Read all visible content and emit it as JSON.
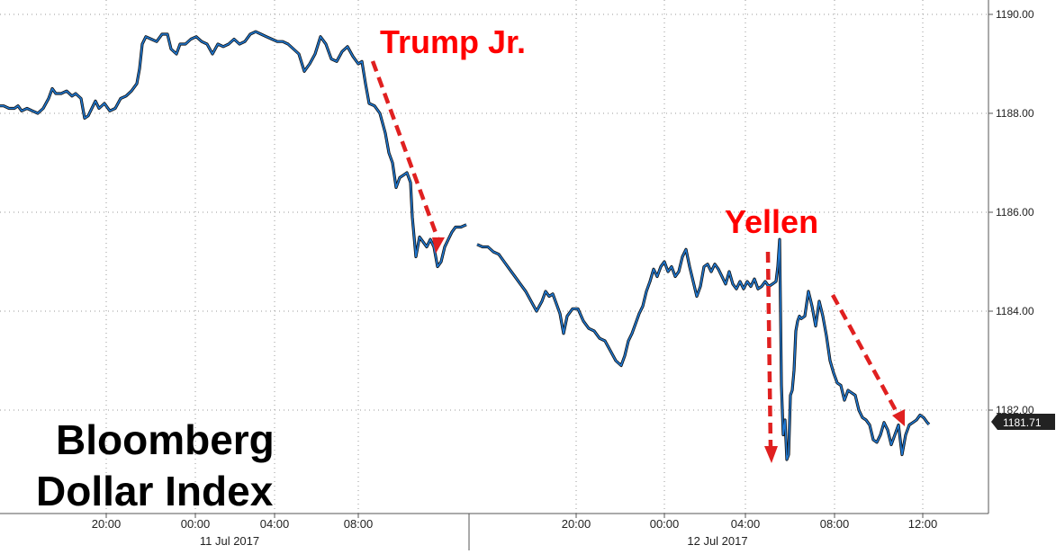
{
  "chart_data": {
    "type": "line",
    "title_lines": [
      "Bloomberg",
      "Dollar Index"
    ],
    "y_ticks": [
      "1182.00",
      "1184.00",
      "1186.00",
      "1188.00",
      "1190.00"
    ],
    "y_tick_values": [
      1182,
      1184,
      1186,
      1188,
      1190
    ],
    "ylim": [
      1180.0,
      1190.3
    ],
    "last_value_label": "1181.71",
    "last_value": 1181.71,
    "x_tick_labels": [
      "20:00",
      "00:00",
      "04:00",
      "08:00",
      "20:00",
      "00:00",
      "04:00",
      "08:00",
      "12:00"
    ],
    "date_labels": [
      "11 Jul 2017",
      "12 Jul 2017"
    ],
    "grid": true,
    "annotations": [
      {
        "text": "Trump Jr.",
        "color": "#ff0000"
      },
      {
        "text": "Yellen",
        "color": "#ff0000"
      }
    ],
    "series": [
      {
        "color": "#1f77d0",
        "segments": [
          [
            [
              0,
              1188.15
            ],
            [
              4,
              1188.15
            ],
            [
              10,
              1188.1
            ],
            [
              16,
              1188.1
            ],
            [
              20,
              1188.15
            ],
            [
              24,
              1188.05
            ],
            [
              30,
              1188.1
            ],
            [
              36,
              1188.05
            ],
            [
              42,
              1188.0
            ],
            [
              48,
              1188.1
            ],
            [
              54,
              1188.3
            ],
            [
              58,
              1188.5
            ],
            [
              62,
              1188.4
            ],
            [
              68,
              1188.4
            ],
            [
              74,
              1188.45
            ],
            [
              80,
              1188.35
            ],
            [
              84,
              1188.4
            ],
            [
              90,
              1188.3
            ],
            [
              94,
              1187.9
            ],
            [
              98,
              1187.95
            ],
            [
              102,
              1188.1
            ],
            [
              106,
              1188.25
            ],
            [
              110,
              1188.1
            ],
            [
              116,
              1188.2
            ],
            [
              122,
              1188.05
            ],
            [
              128,
              1188.1
            ],
            [
              134,
              1188.3
            ],
            [
              140,
              1188.35
            ],
            [
              146,
              1188.45
            ],
            [
              152,
              1188.6
            ],
            [
              155,
              1188.9
            ],
            [
              158,
              1189.4
            ],
            [
              162,
              1189.55
            ],
            [
              168,
              1189.5
            ],
            [
              174,
              1189.45
            ],
            [
              180,
              1189.6
            ],
            [
              186,
              1189.6
            ],
            [
              190,
              1189.3
            ],
            [
              196,
              1189.2
            ],
            [
              200,
              1189.4
            ],
            [
              206,
              1189.4
            ],
            [
              212,
              1189.5
            ],
            [
              218,
              1189.55
            ],
            [
              224,
              1189.45
            ],
            [
              230,
              1189.4
            ],
            [
              236,
              1189.2
            ],
            [
              242,
              1189.4
            ],
            [
              248,
              1189.35
            ],
            [
              254,
              1189.4
            ],
            [
              260,
              1189.5
            ],
            [
              266,
              1189.4
            ],
            [
              272,
              1189.45
            ],
            [
              278,
              1189.6
            ],
            [
              284,
              1189.65
            ],
            [
              290,
              1189.6
            ],
            [
              296,
              1189.55
            ],
            [
              302,
              1189.5
            ],
            [
              308,
              1189.45
            ],
            [
              314,
              1189.45
            ],
            [
              320,
              1189.4
            ],
            [
              326,
              1189.3
            ],
            [
              332,
              1189.2
            ],
            [
              338,
              1188.85
            ],
            [
              344,
              1189.0
            ],
            [
              350,
              1189.2
            ],
            [
              356,
              1189.55
            ],
            [
              362,
              1189.4
            ],
            [
              368,
              1189.1
            ],
            [
              374,
              1189.05
            ],
            [
              380,
              1189.25
            ],
            [
              386,
              1189.35
            ],
            [
              392,
              1189.15
            ],
            [
              398,
              1189.0
            ],
            [
              402,
              1189.05
            ],
            [
              406,
              1188.6
            ],
            [
              410,
              1188.2
            ],
            [
              416,
              1188.15
            ],
            [
              422,
              1188.0
            ],
            [
              428,
              1187.6
            ],
            [
              432,
              1187.2
            ],
            [
              436,
              1187.0
            ],
            [
              440,
              1186.5
            ],
            [
              444,
              1186.7
            ],
            [
              448,
              1186.75
            ],
            [
              452,
              1186.8
            ],
            [
              456,
              1186.6
            ],
            [
              458,
              1185.9
            ],
            [
              462,
              1185.1
            ],
            [
              466,
              1185.5
            ],
            [
              470,
              1185.4
            ],
            [
              474,
              1185.3
            ],
            [
              478,
              1185.45
            ],
            [
              482,
              1185.3
            ],
            [
              486,
              1184.9
            ],
            [
              490,
              1185.0
            ],
            [
              494,
              1185.3
            ],
            [
              498,
              1185.45
            ],
            [
              502,
              1185.6
            ],
            [
              506,
              1185.7
            ],
            [
              512,
              1185.7
            ],
            [
              518,
              1185.75
            ]
          ],
          [
            [
              530,
              1185.35
            ],
            [
              536,
              1185.3
            ],
            [
              542,
              1185.3
            ],
            [
              548,
              1185.2
            ],
            [
              554,
              1185.15
            ],
            [
              560,
              1185.0
            ],
            [
              566,
              1184.85
            ],
            [
              572,
              1184.7
            ],
            [
              578,
              1184.55
            ],
            [
              584,
              1184.4
            ],
            [
              590,
              1184.2
            ],
            [
              596,
              1184.0
            ],
            [
              602,
              1184.2
            ],
            [
              606,
              1184.4
            ],
            [
              610,
              1184.3
            ],
            [
              614,
              1184.35
            ],
            [
              618,
              1184.15
            ],
            [
              622,
              1183.95
            ],
            [
              626,
              1183.55
            ],
            [
              630,
              1183.9
            ],
            [
              636,
              1184.05
            ],
            [
              642,
              1184.05
            ],
            [
              648,
              1183.8
            ],
            [
              654,
              1183.65
            ],
            [
              660,
              1183.6
            ],
            [
              666,
              1183.45
            ],
            [
              672,
              1183.4
            ],
            [
              678,
              1183.2
            ],
            [
              684,
              1183.0
            ],
            [
              690,
              1182.9
            ],
            [
              694,
              1183.1
            ],
            [
              698,
              1183.4
            ],
            [
              702,
              1183.55
            ],
            [
              706,
              1183.75
            ],
            [
              710,
              1183.95
            ],
            [
              714,
              1184.1
            ],
            [
              718,
              1184.4
            ],
            [
              722,
              1184.6
            ],
            [
              726,
              1184.85
            ],
            [
              730,
              1184.7
            ],
            [
              734,
              1184.9
            ],
            [
              738,
              1185.0
            ],
            [
              742,
              1184.8
            ],
            [
              746,
              1184.9
            ],
            [
              750,
              1184.7
            ],
            [
              754,
              1184.8
            ],
            [
              758,
              1185.1
            ],
            [
              762,
              1185.25
            ],
            [
              766,
              1184.9
            ],
            [
              770,
              1184.6
            ],
            [
              774,
              1184.3
            ],
            [
              778,
              1184.5
            ],
            [
              782,
              1184.9
            ],
            [
              786,
              1184.95
            ],
            [
              790,
              1184.8
            ],
            [
              794,
              1184.95
            ],
            [
              798,
              1184.85
            ],
            [
              802,
              1184.7
            ],
            [
              806,
              1184.55
            ],
            [
              810,
              1184.8
            ],
            [
              814,
              1184.55
            ],
            [
              818,
              1184.45
            ],
            [
              822,
              1184.6
            ],
            [
              826,
              1184.45
            ],
            [
              830,
              1184.6
            ],
            [
              834,
              1184.5
            ],
            [
              838,
              1184.65
            ],
            [
              842,
              1184.45
            ],
            [
              846,
              1184.5
            ],
            [
              850,
              1184.6
            ],
            [
              854,
              1184.5
            ],
            [
              858,
              1184.55
            ],
            [
              862,
              1184.6
            ],
            [
              864,
              1184.9
            ],
            [
              866,
              1185.45
            ],
            [
              867,
              1184.0
            ],
            [
              868,
              1182.5
            ],
            [
              870,
              1181.5
            ],
            [
              872,
              1181.8
            ],
            [
              874,
              1181.0
            ],
            [
              876,
              1181.1
            ],
            [
              878,
              1182.3
            ],
            [
              880,
              1182.4
            ],
            [
              882,
              1182.8
            ],
            [
              884,
              1183.6
            ],
            [
              886,
              1183.8
            ],
            [
              888,
              1183.9
            ],
            [
              890,
              1183.85
            ],
            [
              894,
              1183.9
            ],
            [
              898,
              1184.4
            ],
            [
              902,
              1184.1
            ],
            [
              906,
              1183.7
            ],
            [
              910,
              1184.2
            ],
            [
              914,
              1183.9
            ],
            [
              918,
              1183.5
            ],
            [
              922,
              1183.0
            ],
            [
              926,
              1182.75
            ],
            [
              930,
              1182.55
            ],
            [
              934,
              1182.5
            ],
            [
              938,
              1182.2
            ],
            [
              942,
              1182.4
            ],
            [
              946,
              1182.35
            ],
            [
              950,
              1182.3
            ],
            [
              954,
              1182.0
            ],
            [
              958,
              1181.85
            ],
            [
              962,
              1181.8
            ],
            [
              966,
              1181.7
            ],
            [
              970,
              1181.4
            ],
            [
              974,
              1181.35
            ],
            [
              978,
              1181.5
            ],
            [
              982,
              1181.75
            ],
            [
              986,
              1181.6
            ],
            [
              990,
              1181.3
            ],
            [
              994,
              1181.5
            ],
            [
              998,
              1181.7
            ],
            [
              1002,
              1181.1
            ],
            [
              1006,
              1181.5
            ],
            [
              1010,
              1181.7
            ],
            [
              1014,
              1181.75
            ],
            [
              1018,
              1181.8
            ],
            [
              1022,
              1181.9
            ],
            [
              1026,
              1181.85
            ],
            [
              1030,
              1181.75
            ],
            [
              1032,
              1181.71
            ]
          ]
        ]
      }
    ]
  }
}
